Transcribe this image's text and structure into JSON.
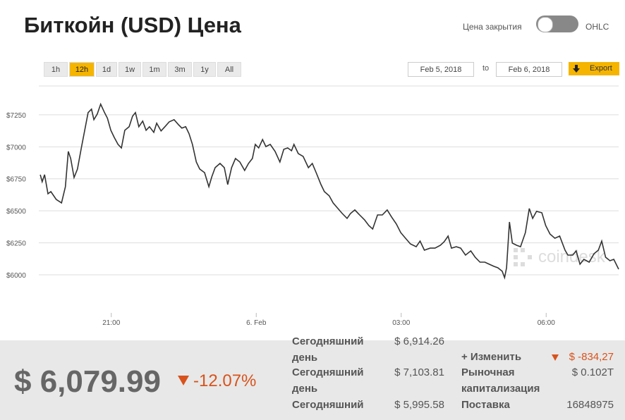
{
  "header": {
    "title": "Биткойн (USD) Цена",
    "toggle_left": "Цена закрытия",
    "toggle_right": "OHLC"
  },
  "controls": {
    "ranges": [
      "1h",
      "12h",
      "1d",
      "1w",
      "1m",
      "3m",
      "1y",
      "All"
    ],
    "active_range": "12h",
    "from_date": "Feb 5, 2018",
    "to_label": "to",
    "to_date": "Feb 6, 2018",
    "export": "Export"
  },
  "chart_data": {
    "type": "line",
    "color": "#333333",
    "grid": true,
    "watermark": "coindesk",
    "xlim": [
      19.5,
      31.5
    ],
    "xticks": [
      {
        "value": 21,
        "label": "21:00"
      },
      {
        "value": 24,
        "label": "6. Feb"
      },
      {
        "value": 27,
        "label": "03:00"
      },
      {
        "value": 30,
        "label": "06:00"
      }
    ],
    "ylim": [
      5725,
      7475
    ],
    "yticks": [
      {
        "value": 6000,
        "label": "$6000"
      },
      {
        "value": 6250,
        "label": "$6250"
      },
      {
        "value": 6500,
        "label": "$6500"
      },
      {
        "value": 6750,
        "label": "$6750"
      },
      {
        "value": 7000,
        "label": "$7000"
      },
      {
        "value": 7250,
        "label": "$7250"
      }
    ],
    "x": [
      19.53,
      19.57,
      19.62,
      19.69,
      19.75,
      19.86,
      19.97,
      20.05,
      20.11,
      20.16,
      20.23,
      20.3,
      20.38,
      20.45,
      20.52,
      20.59,
      20.64,
      20.71,
      20.78,
      20.86,
      20.92,
      20.99,
      21.06,
      21.14,
      21.21,
      21.28,
      21.37,
      21.44,
      21.5,
      21.57,
      21.65,
      21.72,
      21.79,
      21.88,
      21.94,
      22.03,
      22.11,
      22.2,
      22.3,
      22.39,
      22.46,
      22.54,
      22.61,
      22.68,
      22.76,
      22.83,
      22.93,
      23.02,
      23.08,
      23.15,
      23.25,
      23.34,
      23.41,
      23.49,
      23.57,
      23.66,
      23.76,
      23.84,
      23.92,
      23.98,
      24.05,
      24.13,
      24.2,
      24.29,
      24.39,
      24.49,
      24.57,
      24.65,
      24.73,
      24.78,
      24.87,
      24.97,
      25.08,
      25.16,
      25.24,
      25.34,
      25.41,
      25.51,
      25.59,
      25.68,
      25.78,
      25.88,
      25.95,
      26.04,
      26.14,
      26.24,
      26.33,
      26.41,
      26.51,
      26.61,
      26.71,
      26.8,
      26.9,
      26.99,
      27.09,
      27.19,
      27.31,
      27.39,
      27.48,
      27.6,
      27.7,
      27.81,
      27.89,
      27.97,
      28.04,
      28.14,
      28.23,
      28.33,
      28.44,
      28.53,
      28.63,
      28.73,
      28.82,
      28.92,
      29.0,
      29.09,
      29.14,
      29.18,
      29.24,
      29.3,
      29.39,
      29.47,
      29.57,
      29.65,
      29.72,
      29.8,
      29.91,
      29.99,
      30.08,
      30.18,
      30.28,
      30.39,
      30.45,
      30.55,
      30.62,
      30.7,
      30.78,
      30.89,
      30.99,
      31.08,
      31.15,
      31.23,
      31.32,
      31.4,
      31.5
    ],
    "values": [
      6782,
      6727,
      6782,
      6633,
      6650,
      6589,
      6562,
      6688,
      6964,
      6909,
      6760,
      6826,
      6991,
      7129,
      7267,
      7294,
      7212,
      7256,
      7333,
      7267,
      7223,
      7129,
      7074,
      7019,
      6991,
      7129,
      7157,
      7239,
      7267,
      7157,
      7201,
      7129,
      7157,
      7113,
      7184,
      7124,
      7157,
      7195,
      7212,
      7173,
      7146,
      7157,
      7102,
      7019,
      6881,
      6826,
      6798,
      6688,
      6765,
      6837,
      6870,
      6837,
      6705,
      6837,
      6909,
      6881,
      6815,
      6870,
      6909,
      7019,
      6991,
      7057,
      7002,
      7019,
      6964,
      6881,
      6980,
      6991,
      6969,
      7019,
      6947,
      6925,
      6837,
      6870,
      6798,
      6705,
      6650,
      6617,
      6562,
      6523,
      6479,
      6441,
      6479,
      6507,
      6468,
      6430,
      6385,
      6358,
      6468,
      6468,
      6507,
      6452,
      6397,
      6330,
      6286,
      6242,
      6220,
      6264,
      6193,
      6209,
      6209,
      6231,
      6259,
      6303,
      6209,
      6220,
      6209,
      6154,
      6187,
      6138,
      6099,
      6099,
      6083,
      6066,
      6055,
      6028,
      5978,
      6055,
      6413,
      6248,
      6231,
      6220,
      6330,
      6518,
      6441,
      6496,
      6485,
      6385,
      6319,
      6286,
      6303,
      6193,
      6154,
      6154,
      6187,
      6083,
      6121,
      6099,
      6165,
      6193,
      6264,
      6138,
      6110,
      6121,
      6044
    ]
  },
  "summary": {
    "price": "$ 6,079.99",
    "change": "-12.07%",
    "stats_left": [
      {
        "label": "Сегодняшний день",
        "value": "$ 6,914.26"
      },
      {
        "label": "Сегодняшний день",
        "value": "$ 7,103.81"
      },
      {
        "label": "Сегодняшний",
        "value": "$ 5,995.58"
      }
    ],
    "stats_right": [
      {
        "label": "+ Изменить",
        "value": "$ -834,27"
      },
      {
        "label": "Рыночная капитализация",
        "value": "$ 0.102T"
      },
      {
        "label": "Поставка",
        "value": "16848975"
      }
    ]
  }
}
